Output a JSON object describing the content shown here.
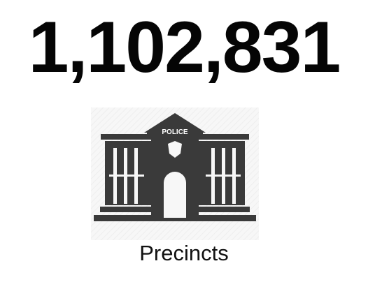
{
  "stat": {
    "value": "1,102,831",
    "label": "Precincts"
  },
  "illustration": {
    "name": "police-station-icon",
    "sign_text": "POLICE",
    "color": "#3a3a3a",
    "background": "#f6f6f6"
  }
}
